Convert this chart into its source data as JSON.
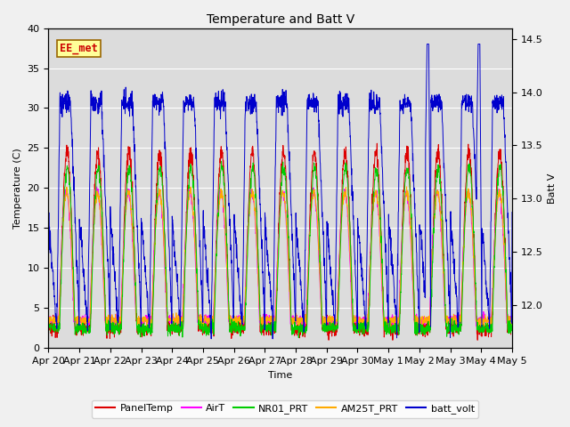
{
  "title": "Temperature and Batt V",
  "xlabel": "Time",
  "ylabel_left": "Temperature (C)",
  "ylabel_right": "Batt V",
  "ylim_left": [
    0,
    40
  ],
  "ylim_right": [
    11.6,
    14.6
  ],
  "bg_color": "#dcdcdc",
  "fig_color": "#f0f0f0",
  "annotation_text": "EE_met",
  "annotation_color": "#cc0000",
  "annotation_bg": "#ffff99",
  "legend_entries": [
    "PanelTemp",
    "AirT",
    "NR01_PRT",
    "AM25T_PRT",
    "batt_volt"
  ],
  "line_colors": [
    "#dd0000",
    "#ff00ff",
    "#00cc00",
    "#ffaa00",
    "#0000cc"
  ],
  "x_tick_labels": [
    "Apr 20",
    "Apr 21",
    "Apr 22",
    "Apr 23",
    "Apr 24",
    "Apr 25",
    "Apr 26",
    "Apr 27",
    "Apr 28",
    "Apr 29",
    "Apr 30",
    "May 1",
    "May 2",
    "May 3",
    "May 4",
    "May 5"
  ],
  "n_days": 15,
  "pts_per_day": 144,
  "temp_base": 2.5,
  "temp_amp_panel": 22,
  "temp_amp_air": 16,
  "temp_amp_nr01": 20,
  "temp_amp_am25t": 16,
  "batt_day_high": 13.8,
  "batt_night_low": 11.8,
  "batt_spike_max": 14.45
}
